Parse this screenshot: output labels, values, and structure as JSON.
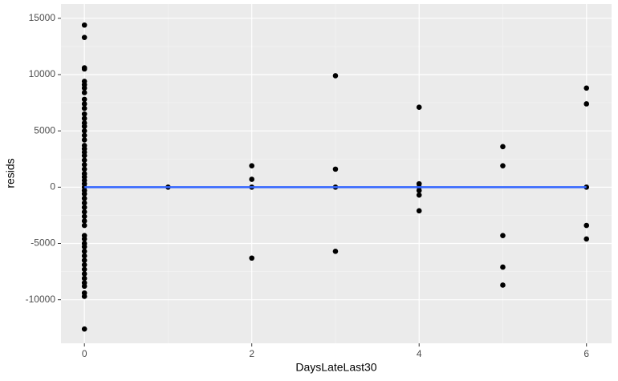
{
  "chart_data": {
    "type": "scatter",
    "x_label": "DaysLateLast30",
    "y_label": "resids",
    "xlim": [
      -0.28,
      6.3
    ],
    "ylim": [
      -13870,
      16270
    ],
    "xticks": [
      0,
      2,
      4,
      6
    ],
    "yticks": [
      -10000,
      -5000,
      0,
      5000,
      10000,
      15000
    ],
    "grid": true,
    "series": [
      {
        "color": "#000000",
        "x": [
          0,
          0,
          0,
          0,
          0,
          0,
          0,
          0,
          0,
          0,
          0,
          0,
          0,
          0,
          0,
          0,
          0,
          0,
          0,
          0,
          0,
          0,
          0,
          0,
          0,
          0,
          0,
          0,
          0,
          0,
          0,
          0,
          0,
          0,
          0,
          0,
          0,
          0,
          0,
          0,
          0,
          0,
          0,
          0,
          0,
          0,
          0,
          0,
          0,
          0,
          0,
          0,
          0,
          0,
          0,
          1,
          2,
          2,
          2,
          2,
          3,
          3,
          3,
          3,
          4,
          4,
          4,
          4,
          4,
          4,
          5,
          5,
          5,
          5,
          5,
          6,
          6,
          6,
          6,
          6
        ],
        "values": [
          14400,
          13300,
          10600,
          10500,
          9400,
          9100,
          8800,
          8400,
          7800,
          7400,
          7000,
          6500,
          6100,
          5700,
          5400,
          5000,
          4600,
          4200,
          3700,
          3400,
          3100,
          2800,
          2400,
          2000,
          1600,
          1200,
          900,
          600,
          300,
          0,
          -300,
          -600,
          -1000,
          -1400,
          -1800,
          -2200,
          -2600,
          -3000,
          -3400,
          -4300,
          -4600,
          -5000,
          -5300,
          -5700,
          -6100,
          -6500,
          -6900,
          -7300,
          -7700,
          -8100,
          -8500,
          -8800,
          -9400,
          -9700,
          -12600,
          0,
          1900,
          700,
          0,
          -6300,
          9900,
          1600,
          0,
          -5700,
          7100,
          300,
          0,
          -300,
          -700,
          -2100,
          3600,
          1900,
          -4300,
          -7100,
          -8700,
          8800,
          7400,
          0,
          -3400,
          -4600
        ]
      }
    ],
    "fit": {
      "color": "#3366ff",
      "x": [
        0,
        6
      ],
      "values": [
        0,
        0
      ]
    }
  }
}
